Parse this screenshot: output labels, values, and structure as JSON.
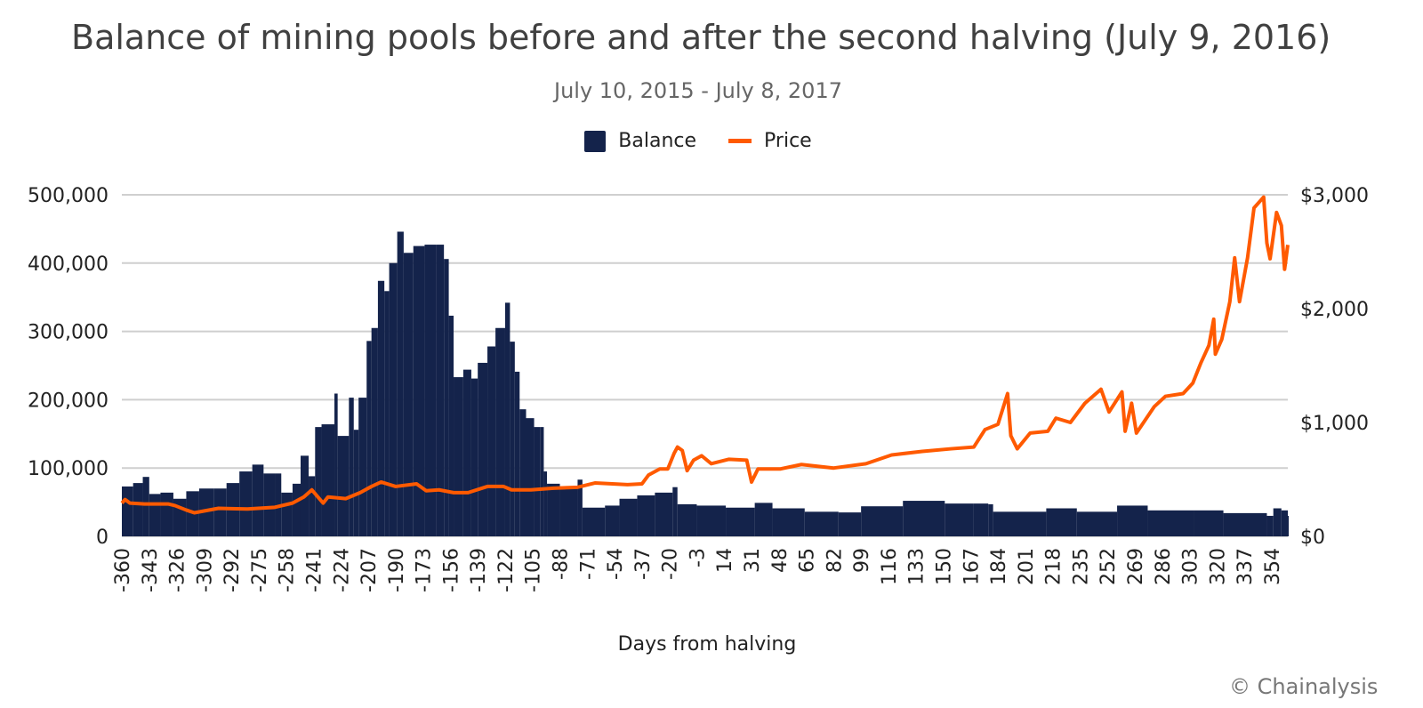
{
  "chart_data": {
    "type": "bar+line",
    "title": "Balance of mining pools before and after the second halving (July 9, 2016)",
    "subtitle": "July 10, 2015 - July 8, 2017",
    "xlabel": "Days from halving",
    "xlim": [
      -360,
      364
    ],
    "xticks": [
      -360,
      -343,
      -326,
      -309,
      -292,
      -275,
      -258,
      -241,
      -224,
      -207,
      -190,
      -173,
      -156,
      -139,
      -122,
      -105,
      -88,
      -71,
      -54,
      -37,
      -20,
      -3,
      14,
      31,
      48,
      65,
      82,
      99,
      116,
      133,
      150,
      167,
      184,
      201,
      218,
      235,
      252,
      269,
      286,
      303,
      320,
      337,
      354
    ],
    "y_left": {
      "lim": [
        0,
        500000
      ],
      "ticks": [
        0,
        100000,
        200000,
        300000,
        400000,
        500000
      ],
      "tick_labels": [
        "0",
        "100,000",
        "200,000",
        "300,000",
        "400,000",
        "500,000"
      ]
    },
    "y_right": {
      "lim": [
        0,
        3000
      ],
      "ticks": [
        0,
        1000,
        2000,
        3000
      ],
      "tick_labels": [
        "$0",
        "$1,000",
        "$2,000",
        "$3,000"
      ]
    },
    "grid": true,
    "legend": "top-center",
    "series": [
      {
        "name": "Balance",
        "type": "bar",
        "axis": "left",
        "color": "#14234b",
        "points": [
          [
            -360,
            73000
          ],
          [
            -353,
            78000
          ],
          [
            -347,
            87000
          ],
          [
            -343,
            62000
          ],
          [
            -336,
            64000
          ],
          [
            -328,
            55000
          ],
          [
            -320,
            66000
          ],
          [
            -312,
            70000
          ],
          [
            -303,
            70000
          ],
          [
            -295,
            78000
          ],
          [
            -287,
            95000
          ],
          [
            -279,
            105000
          ],
          [
            -272,
            92000
          ],
          [
            -265,
            92000
          ],
          [
            -261,
            64000
          ],
          [
            -254,
            77000
          ],
          [
            -249,
            118000
          ],
          [
            -244,
            88000
          ],
          [
            -240,
            160000
          ],
          [
            -236,
            164000
          ],
          [
            -228,
            209000
          ],
          [
            -226,
            147000
          ],
          [
            -219,
            203000
          ],
          [
            -216,
            156000
          ],
          [
            -213,
            203000
          ],
          [
            -208,
            286000
          ],
          [
            -205,
            305000
          ],
          [
            -201,
            374000
          ],
          [
            -197,
            359000
          ],
          [
            -194,
            400000
          ],
          [
            -189,
            446000
          ],
          [
            -185,
            415000
          ],
          [
            -179,
            425000
          ],
          [
            -172,
            427000
          ],
          [
            -165,
            427000
          ],
          [
            -160,
            406000
          ],
          [
            -157,
            323000
          ],
          [
            -154,
            233000
          ],
          [
            -148,
            244000
          ],
          [
            -143,
            231000
          ],
          [
            -139,
            254000
          ],
          [
            -133,
            278000
          ],
          [
            -128,
            305000
          ],
          [
            -122,
            342000
          ],
          [
            -119,
            285000
          ],
          [
            -116,
            241000
          ],
          [
            -113,
            186000
          ],
          [
            -109,
            173000
          ],
          [
            -104,
            160000
          ],
          [
            -100,
            160000
          ],
          [
            -98,
            95000
          ],
          [
            -96,
            77000
          ],
          [
            -88,
            71000
          ],
          [
            -77,
            83000
          ],
          [
            -74,
            42000
          ],
          [
            -60,
            45000
          ],
          [
            -51,
            55000
          ],
          [
            -40,
            60000
          ],
          [
            -29,
            64000
          ],
          [
            -18,
            72000
          ],
          [
            -15,
            47000
          ],
          [
            -3,
            45000
          ],
          [
            15,
            42000
          ],
          [
            33,
            49000
          ],
          [
            44,
            41000
          ],
          [
            64,
            36000
          ],
          [
            85,
            35000
          ],
          [
            99,
            44000
          ],
          [
            125,
            52000
          ],
          [
            151,
            48000
          ],
          [
            169,
            48000
          ],
          [
            178,
            47000
          ],
          [
            181,
            36000
          ],
          [
            214,
            41000
          ],
          [
            233,
            36000
          ],
          [
            258,
            45000
          ],
          [
            277,
            38000
          ],
          [
            306,
            38000
          ],
          [
            324,
            34000
          ],
          [
            351,
            30000
          ],
          [
            355,
            41000
          ],
          [
            360,
            38000
          ],
          [
            364,
            30000
          ]
        ]
      },
      {
        "name": "Price",
        "type": "line",
        "axis": "right",
        "color": "#ff5a00",
        "points": [
          [
            -360,
            292
          ],
          [
            -358,
            323
          ],
          [
            -355,
            292
          ],
          [
            -346,
            284
          ],
          [
            -331,
            284
          ],
          [
            -327,
            270
          ],
          [
            -320,
            231
          ],
          [
            -315,
            207
          ],
          [
            -300,
            246
          ],
          [
            -282,
            240
          ],
          [
            -265,
            255
          ],
          [
            -254,
            292
          ],
          [
            -247,
            346
          ],
          [
            -242,
            408
          ],
          [
            -235,
            292
          ],
          [
            -232,
            346
          ],
          [
            -221,
            331
          ],
          [
            -212,
            384
          ],
          [
            -205,
            438
          ],
          [
            -199,
            477
          ],
          [
            -190,
            438
          ],
          [
            -177,
            461
          ],
          [
            -171,
            400
          ],
          [
            -163,
            408
          ],
          [
            -154,
            384
          ],
          [
            -145,
            384
          ],
          [
            -133,
            438
          ],
          [
            -123,
            438
          ],
          [
            -118,
            408
          ],
          [
            -106,
            408
          ],
          [
            -92,
            423
          ],
          [
            -77,
            431
          ],
          [
            -66,
            469
          ],
          [
            -46,
            454
          ],
          [
            -37,
            461
          ],
          [
            -33,
            538
          ],
          [
            -26,
            592
          ],
          [
            -21,
            592
          ],
          [
            -17,
            731
          ],
          [
            -15,
            784
          ],
          [
            -12,
            754
          ],
          [
            -9,
            577
          ],
          [
            -5,
            669
          ],
          [
            0,
            708
          ],
          [
            6,
            638
          ],
          [
            17,
            677
          ],
          [
            28,
            669
          ],
          [
            31,
            477
          ],
          [
            35,
            592
          ],
          [
            49,
            592
          ],
          [
            62,
            631
          ],
          [
            82,
            600
          ],
          [
            102,
            638
          ],
          [
            118,
            715
          ],
          [
            137,
            746
          ],
          [
            155,
            769
          ],
          [
            169,
            784
          ],
          [
            176,
            938
          ],
          [
            184,
            984
          ],
          [
            190,
            1254
          ],
          [
            192,
            884
          ],
          [
            196,
            769
          ],
          [
            204,
            907
          ],
          [
            215,
            923
          ],
          [
            220,
            1038
          ],
          [
            229,
            1000
          ],
          [
            238,
            1169
          ],
          [
            248,
            1292
          ],
          [
            253,
            1092
          ],
          [
            261,
            1269
          ],
          [
            263,
            923
          ],
          [
            267,
            1169
          ],
          [
            270,
            907
          ],
          [
            281,
            1138
          ],
          [
            288,
            1230
          ],
          [
            299,
            1254
          ],
          [
            305,
            1346
          ],
          [
            310,
            1523
          ],
          [
            315,
            1677
          ],
          [
            318,
            1907
          ],
          [
            319,
            1600
          ],
          [
            323,
            1730
          ],
          [
            328,
            2061
          ],
          [
            331,
            2446
          ],
          [
            334,
            2061
          ],
          [
            339,
            2446
          ],
          [
            343,
            2884
          ],
          [
            349,
            2980
          ],
          [
            351,
            2576
          ],
          [
            353,
            2438
          ],
          [
            357,
            2845
          ],
          [
            360,
            2730
          ],
          [
            362,
            2346
          ],
          [
            364,
            2560
          ]
        ]
      }
    ]
  },
  "credit": "© Chainalysis"
}
